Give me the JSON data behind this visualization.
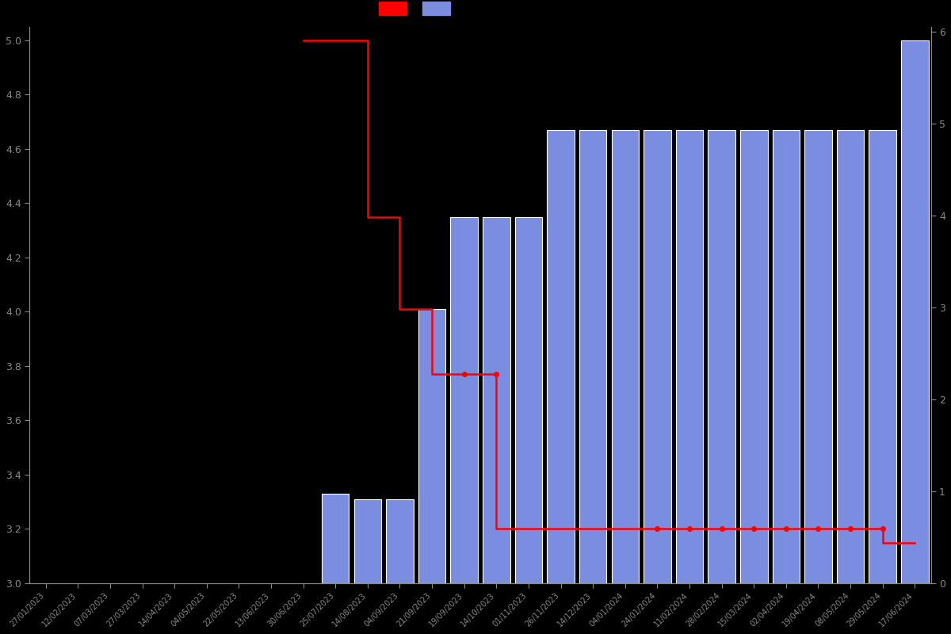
{
  "background_color": "#000000",
  "bar_color": "#7b8de0",
  "bar_edge_color": "#ffffff",
  "line_color": "#ff0000",
  "tick_color": "#888888",
  "dates": [
    "27/01/2023",
    "12/02/2023",
    "07/03/2023",
    "27/03/2023",
    "14/04/2023",
    "04/05/2023",
    "22/05/2023",
    "13/06/2023",
    "30/06/2023",
    "25/07/2023",
    "14/08/2023",
    "04/09/2023",
    "21/09/2023",
    "19/09/2023",
    "14/10/2023",
    "01/11/2023",
    "26/11/2023",
    "14/12/2023",
    "04/01/2024",
    "24/01/2024",
    "11/02/2024",
    "28/02/2024",
    "15/03/2024",
    "02/04/2024",
    "19/04/2024",
    "08/05/2024",
    "29/05/2024",
    "17/06/2024"
  ],
  "bar_values": [
    null,
    null,
    null,
    null,
    null,
    null,
    null,
    null,
    null,
    3.33,
    3.31,
    3.31,
    4.01,
    4.35,
    4.35,
    4.35,
    4.67,
    4.67,
    4.67,
    4.67,
    4.67,
    4.67,
    4.67,
    4.67,
    4.67,
    4.67,
    4.67,
    5.0
  ],
  "line_x_indices": [
    8,
    9,
    10,
    11,
    12,
    13,
    14,
    15,
    16,
    17,
    18,
    19,
    20,
    21,
    22,
    23,
    24,
    25,
    26,
    27
  ],
  "line_y_values": [
    5.0,
    5.0,
    5.0,
    4.35,
    4.01,
    3.77,
    3.77,
    3.2,
    3.2,
    3.2,
    3.2,
    3.2,
    3.2,
    3.2,
    3.2,
    3.2,
    3.2,
    3.2,
    3.2,
    3.15
  ],
  "marker_x_indices": [
    13,
    14,
    19,
    20,
    21,
    22,
    23,
    24,
    25,
    26
  ],
  "ylim_left": [
    3.0,
    5.05
  ],
  "ylim_right": [
    0,
    6.05
  ],
  "yticks_left": [
    3.0,
    3.2,
    3.4,
    3.6,
    3.8,
    4.0,
    4.2,
    4.4,
    4.6,
    4.8,
    5.0
  ],
  "yticks_right": [
    0,
    1,
    2,
    3,
    4,
    5,
    6
  ],
  "figsize": [
    12,
    8
  ],
  "dpi": 100
}
